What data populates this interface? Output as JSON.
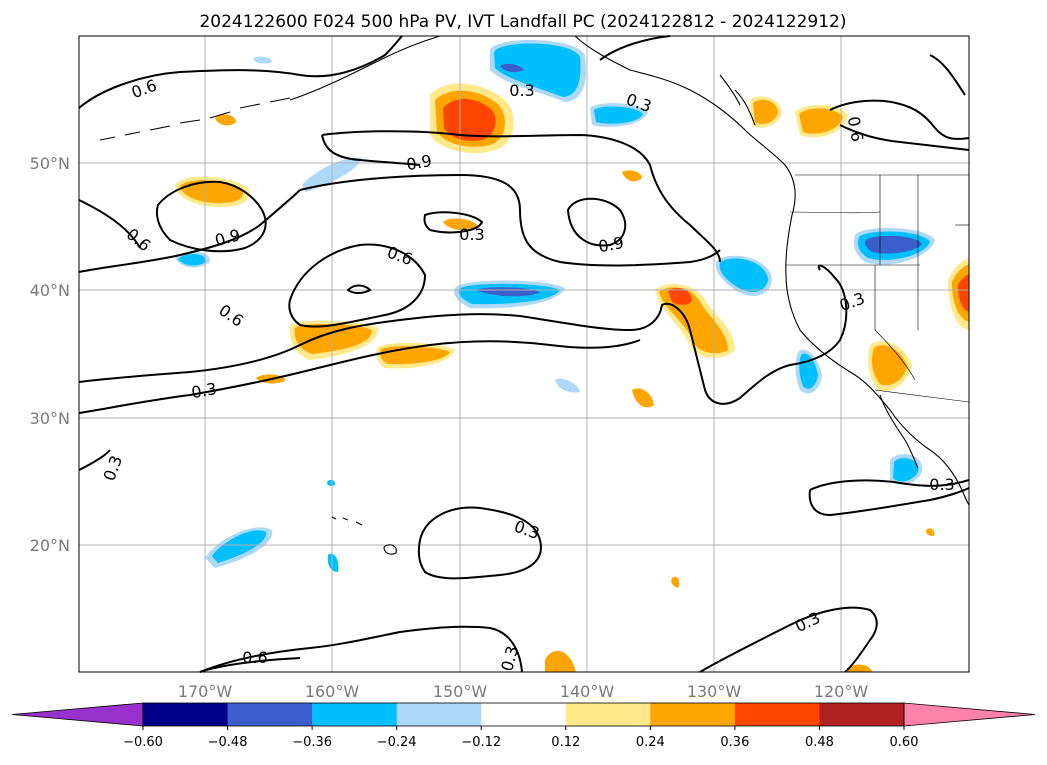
{
  "title": "2024122600 F024 500 hPa PV, IVT Landfall PC (2024122812 - 2024122912)",
  "map": {
    "lat_labels": [
      "50°N",
      "40°N",
      "30°N",
      "20°N"
    ],
    "lon_labels": [
      "170°W",
      "160°W",
      "150°W",
      "140°W",
      "130°W",
      "120°W"
    ],
    "contour_labels": [
      "0.6",
      "0.3",
      "0.3",
      "0.9",
      "0.6",
      "0.9",
      "0.3",
      "0.9",
      "0.6",
      "0.6",
      "0.3",
      "0.3",
      "0.3",
      "0.3",
      "0.3",
      "0.6",
      "0.3",
      "0.3",
      "0.6"
    ]
  },
  "colorbar": {
    "ticks": [
      "−0.60",
      "−0.48",
      "−0.36",
      "−0.24",
      "−0.12",
      "0.12",
      "0.24",
      "0.36",
      "0.48",
      "0.60"
    ],
    "colors": [
      "#9932cc",
      "#00008b",
      "#3a5fcd",
      "#00bfff",
      "#add8f7",
      "#ffffff",
      "#ffe98a",
      "#ffa500",
      "#ff4500",
      "#b22222",
      "#ff82ab"
    ]
  }
}
